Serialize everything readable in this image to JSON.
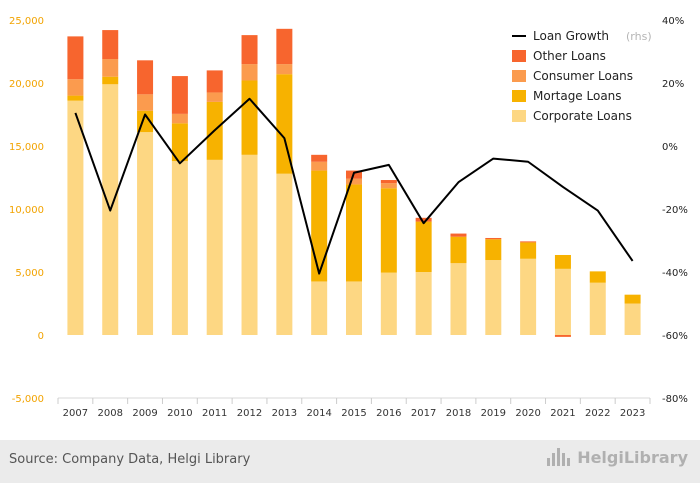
{
  "chart_data": {
    "type": "bar",
    "stacked": true,
    "categories": [
      "2007",
      "2008",
      "2009",
      "2010",
      "2011",
      "2012",
      "2013",
      "2014",
      "2015",
      "2016",
      "2017",
      "2018",
      "2019",
      "2020",
      "2021",
      "2022",
      "2023"
    ],
    "series": [
      {
        "name": "Corporate Loans",
        "color": "#fdd783",
        "values": [
          18600,
          19900,
          16100,
          13800,
          13900,
          14300,
          12800,
          4250,
          4250,
          4950,
          5000,
          5700,
          5950,
          6050,
          5250,
          4150,
          2500
        ]
      },
      {
        "name": "Mortage Loans",
        "color": "#f7b200",
        "values": [
          400,
          600,
          1700,
          3000,
          4600,
          5900,
          7900,
          8800,
          7700,
          6700,
          4000,
          2100,
          1650,
          1300,
          1100,
          900,
          700
        ]
      },
      {
        "name": "Consumer Loans",
        "color": "#fb9b4e",
        "values": [
          1300,
          1400,
          1300,
          750,
          750,
          1300,
          800,
          700,
          450,
          400,
          0,
          0,
          0,
          0,
          0,
          0,
          0
        ]
      },
      {
        "name": "Other Loans",
        "color": "#f7652e",
        "values": [
          3400,
          2300,
          2700,
          3000,
          1750,
          2300,
          2800,
          550,
          650,
          250,
          300,
          250,
          100,
          80,
          0,
          0,
          0
        ]
      }
    ],
    "negative_series": [
      {
        "name": "Other Loans",
        "values": [
          0,
          0,
          0,
          0,
          0,
          0,
          0,
          0,
          0,
          0,
          0,
          0,
          0,
          0,
          -150,
          0,
          0
        ]
      }
    ],
    "line": {
      "name": "Loan Growth",
      "suffix": "(rhs)",
      "color": "#000000",
      "values": [
        10.5,
        -20.5,
        10,
        -5.5,
        5,
        15,
        2.5,
        -40.5,
        -8.5,
        -6,
        -24.5,
        -11.5,
        -4,
        -5,
        -13,
        -20.5,
        -36.5
      ]
    },
    "ylim": [
      -5000,
      25000
    ],
    "yticks": [
      -5000,
      0,
      5000,
      10000,
      15000,
      20000,
      25000
    ],
    "ytick_labels": [
      "-5,000",
      "0",
      "5,000",
      "10,000",
      "15,000",
      "20,000",
      "25,000"
    ],
    "y2lim": [
      -80,
      40
    ],
    "y2ticks": [
      -80,
      -60,
      -40,
      -20,
      0,
      20,
      40
    ],
    "y2tick_labels": [
      "-80%",
      "-60%",
      "-40%",
      "-20%",
      "0%",
      "20%",
      "40%"
    ],
    "legend_position": "top-right",
    "legend_order": [
      "Loan Growth",
      "Other Loans",
      "Consumer Loans",
      "Mortage Loans",
      "Corporate Loans"
    ],
    "grid": false,
    "title": "",
    "xlabel": "",
    "ylabel": ""
  },
  "footer": {
    "source": "Source: Company Data, Helgi Library",
    "brand": "HelgiLibrary"
  }
}
